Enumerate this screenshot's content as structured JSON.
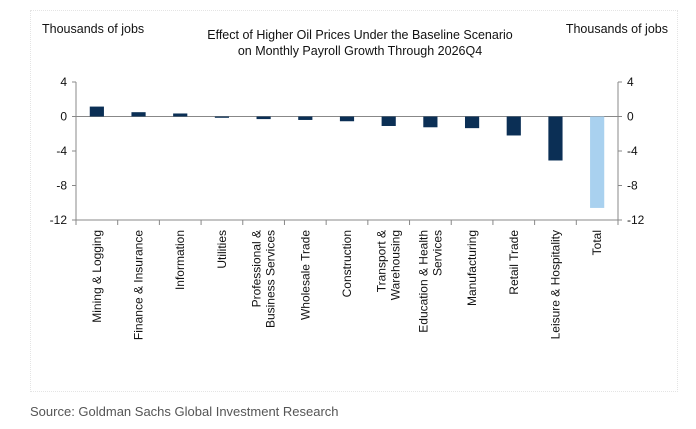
{
  "chart_data": {
    "type": "bar",
    "title": "Effect of Higher Oil Prices Under the Baseline Scenario on Monthly Payroll Growth Through 2026Q4",
    "title_lines": [
      "Effect of Higher Oil Prices Under the Baseline Scenario",
      "on Monthly Payroll Growth Through 2026Q4"
    ],
    "ylabel_left": "Thousands of jobs",
    "ylabel_right": "Thousands of jobs",
    "ylim": [
      -12,
      4
    ],
    "yticks": [
      4,
      0,
      -4,
      -8,
      -12
    ],
    "grid": false,
    "categories": [
      "Mining & Logging",
      "Finance & Insurance",
      "Information",
      "Utilities",
      "Professional & Business Services",
      "Wholesale Trade",
      "Construction",
      "Transport & Warehousing",
      "Education & Health Services",
      "Manufacturing",
      "Retail Trade",
      "Leisure & Hospitality",
      "Total"
    ],
    "category_lines": [
      [
        "Mining & Logging"
      ],
      [
        "Finance & Insurance"
      ],
      [
        "Information"
      ],
      [
        "Utilities"
      ],
      [
        "Professional &",
        "Business Services"
      ],
      [
        "Wholesale Trade"
      ],
      [
        "Construction"
      ],
      [
        "Transport &",
        "Warehousing"
      ],
      [
        "Education & Health",
        "Services"
      ],
      [
        "Manufacturing"
      ],
      [
        "Retail Trade"
      ],
      [
        "Leisure & Hospitality"
      ],
      [
        "Total"
      ]
    ],
    "values": [
      1.15,
      0.5,
      0.35,
      -0.15,
      -0.3,
      -0.4,
      -0.55,
      -1.1,
      -1.25,
      -1.35,
      -2.2,
      -5.1,
      -10.6
    ],
    "colors": {
      "sector": "#0b2f55",
      "total": "#a9d1ef"
    }
  },
  "source": "Source: Goldman Sachs Global Investment Research"
}
